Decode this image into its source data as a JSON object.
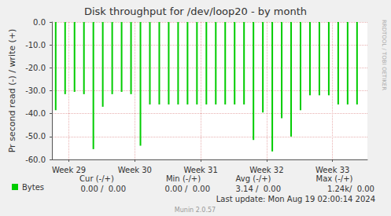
{
  "chart_data": {
    "type": "bar",
    "title": "Disk throughput for /dev/loop20 - by month",
    "y_label": "Pr second read (-) / write (+)",
    "x": [
      0.4,
      1.4,
      2.4,
      3.4,
      4.4,
      5.4,
      6.4,
      7.4,
      8.4,
      9.4,
      10.4,
      11.4,
      12.4,
      13.4,
      14.4,
      15.4,
      16.4,
      17.4,
      18.4,
      19.4,
      20.4,
      21.4,
      22.4,
      23.4,
      24.4,
      25.4,
      26.4,
      27.4,
      28.4,
      29.4,
      30.4,
      31.4,
      32.4
    ],
    "series": [
      {
        "name": "Bytes",
        "color": "#00cc00",
        "values": [
          -38.5,
          -31.5,
          -30.5,
          -31.5,
          -55.5,
          -37,
          -31.5,
          -30.5,
          -31.5,
          -54,
          -36,
          -36,
          -36,
          -36,
          -36,
          -36,
          -36,
          -36,
          -36,
          -36,
          -36,
          -51.5,
          -39.5,
          -56.5,
          -42,
          -50,
          -38.5,
          -32,
          -32,
          -32,
          -36,
          -36,
          -36
        ]
      }
    ],
    "xlim": [
      0,
      33.5
    ],
    "xticks": [
      {
        "value": 1.8,
        "label": "Week 29"
      },
      {
        "value": 8.8,
        "label": "Week 30"
      },
      {
        "value": 15.8,
        "label": "Week 31"
      },
      {
        "value": 22.8,
        "label": "Week 32"
      },
      {
        "value": 29.8,
        "label": "Week 33"
      }
    ],
    "ylim": [
      -60,
      0
    ],
    "yticks": [
      {
        "value": 0,
        "label": "0.0"
      },
      {
        "value": -10,
        "label": "-10.0"
      },
      {
        "value": -20,
        "label": "-20.0"
      },
      {
        "value": -30,
        "label": "-30.0"
      },
      {
        "value": -40,
        "label": "-40.0"
      },
      {
        "value": -50,
        "label": "-50.0"
      },
      {
        "value": -60,
        "label": "-60.0"
      }
    ],
    "grid": true,
    "legend": "bottom-left",
    "legend_table": {
      "headers": [
        "Cur (-/+)",
        "Min (-/+)",
        "Avg (-/+)",
        "Max (-/+)"
      ],
      "cells": [
        "0.00 /  0.00",
        "0.00 /  0.00",
        "3.14 /  0.00",
        "1.24k/  0.00"
      ]
    },
    "footer": "Last update: Mon Aug 19 02:00:14 2024",
    "credit": "Munin 2.0.57",
    "side_text": "RRDTOOL / TOBI OETIKER"
  }
}
